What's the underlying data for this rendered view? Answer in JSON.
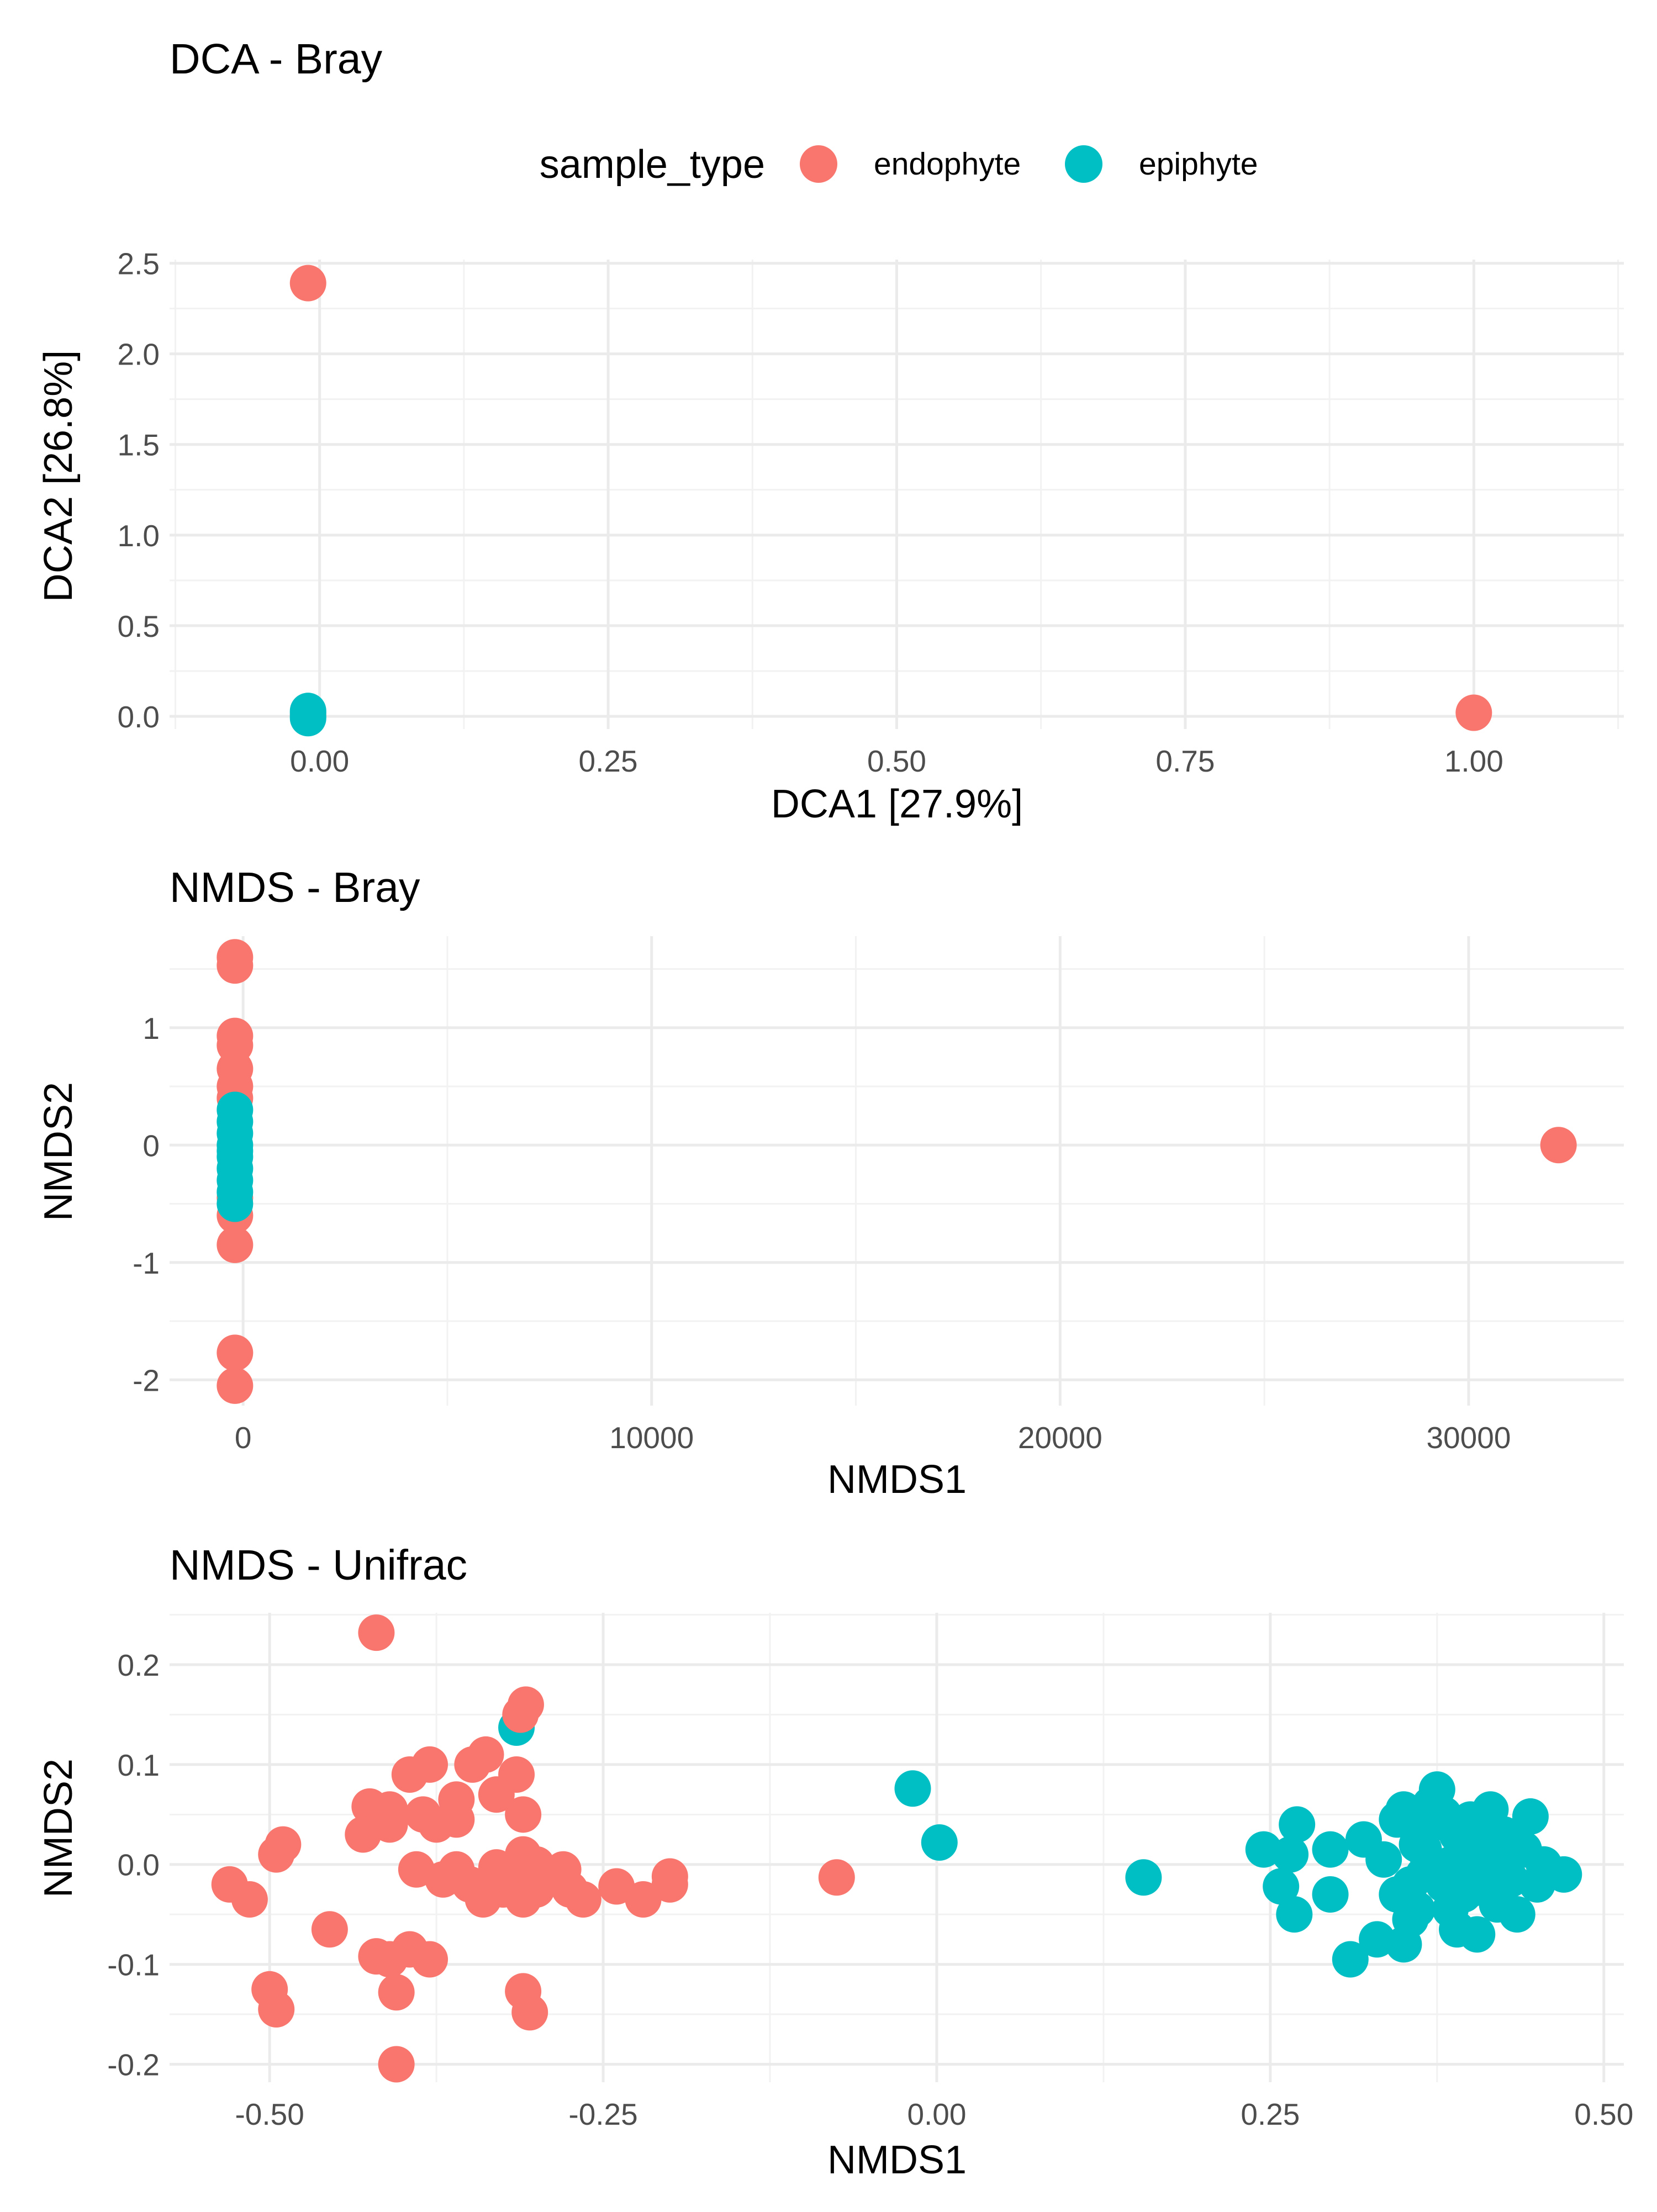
{
  "legend": {
    "title": "sample_type",
    "items": [
      {
        "label": "endophyte",
        "color": "#F8766D"
      },
      {
        "label": "epiphyte",
        "color": "#00BFC4"
      }
    ]
  },
  "chart_data": [
    {
      "type": "scatter",
      "title": "DCA - Bray",
      "xlabel": "DCA1   [27.9%]",
      "ylabel": "DCA2   [26.8%]",
      "xlim": [
        -0.13,
        1.13
      ],
      "ylim": [
        -0.07,
        2.52
      ],
      "xticks": [
        0,
        0.25,
        0.5,
        0.75,
        1.0
      ],
      "xtick_labels": [
        "0.00",
        "0.25",
        "0.50",
        "0.75",
        "1.00"
      ],
      "yticks": [
        0,
        0.5,
        1.0,
        1.5,
        2.0,
        2.5
      ],
      "ytick_labels": [
        "0.0",
        "0.5",
        "1.0",
        "1.5",
        "2.0",
        "2.5"
      ],
      "grid": true,
      "legend_position": "top",
      "series": [
        {
          "name": "endophyte",
          "color": "#F8766D",
          "points": [
            [
              -0.01,
              2.39
            ],
            [
              1.0,
              0.02
            ],
            [
              -0.01,
              0.01
            ]
          ]
        },
        {
          "name": "epiphyte",
          "color": "#00BFC4",
          "points": [
            [
              -0.01,
              0.02
            ],
            [
              -0.01,
              0.0
            ],
            [
              -0.01,
              -0.01
            ],
            [
              -0.01,
              0.03
            ]
          ]
        }
      ]
    },
    {
      "type": "scatter",
      "title": "NMDS - Bray",
      "xlabel": "NMDS1",
      "ylabel": "NMDS2",
      "xlim": [
        -1800,
        33800
      ],
      "ylim": [
        -2.22,
        1.78
      ],
      "xticks": [
        0,
        10000,
        20000,
        30000
      ],
      "xtick_labels": [
        "0",
        "10000",
        "20000",
        "30000"
      ],
      "yticks": [
        -2,
        -1,
        0,
        1
      ],
      "ytick_labels": [
        "-2",
        "-1",
        "0",
        "1"
      ],
      "grid": true,
      "series": [
        {
          "name": "endophyte",
          "color": "#F8766D",
          "points": [
            [
              -200,
              1.6
            ],
            [
              -200,
              1.53
            ],
            [
              -200,
              0.93
            ],
            [
              -200,
              0.85
            ],
            [
              -200,
              0.65
            ],
            [
              -200,
              0.5
            ],
            [
              -200,
              0.4
            ],
            [
              -200,
              -0.45
            ],
            [
              -200,
              -0.6
            ],
            [
              -200,
              -0.85
            ],
            [
              -200,
              -1.77
            ],
            [
              -200,
              -2.05
            ],
            [
              32200,
              0.0
            ]
          ]
        },
        {
          "name": "epiphyte",
          "color": "#00BFC4",
          "points": [
            [
              -200,
              0.3
            ],
            [
              -200,
              0.2
            ],
            [
              -200,
              0.1
            ],
            [
              -200,
              0.0
            ],
            [
              -200,
              -0.05
            ],
            [
              -200,
              -0.1
            ],
            [
              -200,
              -0.2
            ],
            [
              -200,
              -0.3
            ],
            [
              -200,
              -0.4
            ],
            [
              -200,
              -0.5
            ]
          ]
        }
      ]
    },
    {
      "type": "scatter",
      "title": "NMDS - Unifrac",
      "xlabel": "NMDS1",
      "ylabel": "NMDS2",
      "xlim": [
        -0.575,
        0.515
      ],
      "ylim": [
        -0.218,
        0.252
      ],
      "xticks": [
        -0.5,
        -0.25,
        0,
        0.25,
        0.5
      ],
      "xtick_labels": [
        "-0.50",
        "-0.25",
        "0.00",
        "0.25",
        "0.50"
      ],
      "yticks": [
        -0.2,
        -0.1,
        0,
        0.1,
        0.2
      ],
      "ytick_labels": [
        "-0.2",
        "-0.1",
        "0.0",
        "0.1",
        "0.2"
      ],
      "grid": true,
      "series": [
        {
          "name": "epiphyte",
          "color": "#00BFC4",
          "points": [
            [
              -0.315,
              0.137
            ],
            [
              -0.018,
              0.076
            ],
            [
              0.002,
              0.022
            ],
            [
              0.155,
              -0.013
            ],
            [
              0.245,
              0.015
            ],
            [
              0.27,
              0.04
            ],
            [
              0.265,
              0.01
            ],
            [
              0.258,
              -0.022
            ],
            [
              0.268,
              -0.05
            ],
            [
              0.295,
              0.015
            ],
            [
              0.295,
              -0.03
            ],
            [
              0.31,
              -0.095
            ],
            [
              0.32,
              0.025
            ],
            [
              0.33,
              -0.075
            ],
            [
              0.335,
              0.005
            ],
            [
              0.345,
              -0.03
            ],
            [
              0.345,
              0.045
            ],
            [
              0.35,
              -0.08
            ],
            [
              0.355,
              -0.055
            ],
            [
              0.35,
              0.055
            ],
            [
              0.36,
              0.02
            ],
            [
              0.365,
              -0.01
            ],
            [
              0.37,
              0.04
            ],
            [
              0.375,
              0.075
            ],
            [
              0.38,
              -0.02
            ],
            [
              0.38,
              0.05
            ],
            [
              0.385,
              0.0
            ],
            [
              0.385,
              -0.045
            ],
            [
              0.39,
              0.03
            ],
            [
              0.39,
              -0.065
            ],
            [
              0.395,
              0.01
            ],
            [
              0.4,
              0.045
            ],
            [
              0.4,
              -0.025
            ],
            [
              0.405,
              -0.07
            ],
            [
              0.41,
              0.02
            ],
            [
              0.41,
              -0.01
            ],
            [
              0.415,
              0.04
            ],
            [
              0.42,
              -0.04
            ],
            [
              0.42,
              0.005
            ],
            [
              0.425,
              0.03
            ],
            [
              0.43,
              -0.015
            ],
            [
              0.435,
              -0.05
            ],
            [
              0.44,
              0.015
            ],
            [
              0.445,
              0.048
            ],
            [
              0.45,
              -0.02
            ],
            [
              0.455,
              0.0
            ],
            [
              0.47,
              -0.01
            ],
            [
              0.36,
              -0.045
            ],
            [
              0.37,
              0.06
            ],
            [
              0.395,
              -0.03
            ],
            [
              0.415,
              0.055
            ],
            [
              0.365,
              0.015
            ],
            [
              0.355,
              -0.02
            ],
            [
              0.43,
              0.022
            ]
          ]
        },
        {
          "name": "endophyte",
          "color": "#F8766D",
          "points": [
            [
              -0.42,
              0.232
            ],
            [
              -0.308,
              0.16
            ],
            [
              -0.312,
              0.15
            ],
            [
              -0.338,
              0.11
            ],
            [
              -0.348,
              0.1
            ],
            [
              -0.38,
              0.1
            ],
            [
              -0.395,
              0.09
            ],
            [
              -0.315,
              0.09
            ],
            [
              -0.33,
              0.07
            ],
            [
              -0.36,
              0.065
            ],
            [
              -0.425,
              0.058
            ],
            [
              -0.41,
              0.055
            ],
            [
              -0.385,
              0.05
            ],
            [
              -0.36,
              0.045
            ],
            [
              -0.31,
              0.05
            ],
            [
              -0.375,
              0.04
            ],
            [
              -0.41,
              0.04
            ],
            [
              -0.43,
              0.03
            ],
            [
              -0.49,
              0.02
            ],
            [
              -0.495,
              0.01
            ],
            [
              -0.39,
              -0.005
            ],
            [
              -0.36,
              -0.005
            ],
            [
              -0.33,
              -0.003
            ],
            [
              -0.31,
              0.01
            ],
            [
              -0.31,
              -0.005
            ],
            [
              -0.3,
              0.0
            ],
            [
              -0.28,
              -0.005
            ],
            [
              -0.35,
              -0.02
            ],
            [
              -0.325,
              -0.025
            ],
            [
              -0.37,
              -0.015
            ],
            [
              -0.3,
              -0.025
            ],
            [
              -0.275,
              -0.025
            ],
            [
              -0.31,
              -0.035
            ],
            [
              -0.34,
              -0.035
            ],
            [
              -0.265,
              -0.035
            ],
            [
              -0.24,
              -0.022
            ],
            [
              -0.22,
              -0.035
            ],
            [
              -0.2,
              -0.012
            ],
            [
              -0.2,
              -0.02
            ],
            [
              -0.53,
              -0.02
            ],
            [
              -0.515,
              -0.035
            ],
            [
              -0.455,
              -0.065
            ],
            [
              -0.42,
              -0.092
            ],
            [
              -0.41,
              -0.095
            ],
            [
              -0.395,
              -0.085
            ],
            [
              -0.38,
              -0.095
            ],
            [
              -0.405,
              -0.128
            ],
            [
              -0.31,
              -0.127
            ],
            [
              -0.305,
              -0.148
            ],
            [
              -0.5,
              -0.125
            ],
            [
              -0.495,
              -0.145
            ],
            [
              -0.405,
              -0.2
            ],
            [
              -0.075,
              -0.013
            ]
          ]
        }
      ]
    }
  ]
}
